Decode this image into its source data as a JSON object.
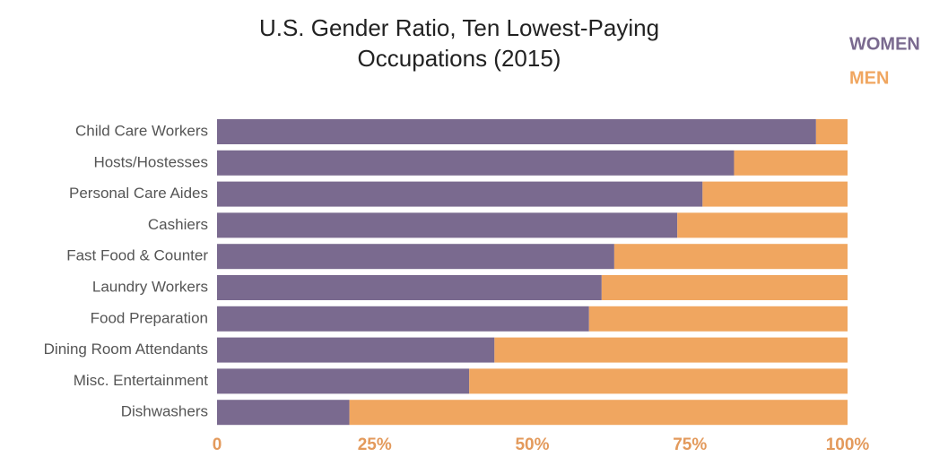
{
  "chart_data": {
    "type": "stacked-barh",
    "title": "U.S. Gender Ratio, Ten Lowest-Paying Occupations (2015)",
    "categories": [
      "Child Care Workers",
      "Hosts/Hostesses",
      "Personal Care Aides",
      "Cashiers",
      "Fast Food & Counter",
      "Laundry Workers",
      "Food Preparation",
      "Dining Room Attendants",
      "Misc. Entertainment",
      "Dishwashers"
    ],
    "series": [
      {
        "name": "WOMEN",
        "color": "#7a6a8f",
        "values": [
          95,
          82,
          77,
          73,
          63,
          61,
          59,
          44,
          40,
          21
        ]
      },
      {
        "name": "MEN",
        "color": "#f0a660",
        "values": [
          5,
          18,
          23,
          27,
          37,
          39,
          41,
          56,
          60,
          79
        ]
      }
    ],
    "xlim": [
      0,
      100
    ],
    "xticks": [
      0,
      {
        "value": 25,
        "label": "25%"
      },
      {
        "value": 50,
        "label": "50%"
      },
      {
        "value": 75,
        "label": "75%"
      },
      {
        "value": 100,
        "label": "100%"
      }
    ],
    "legend": "top-right"
  }
}
